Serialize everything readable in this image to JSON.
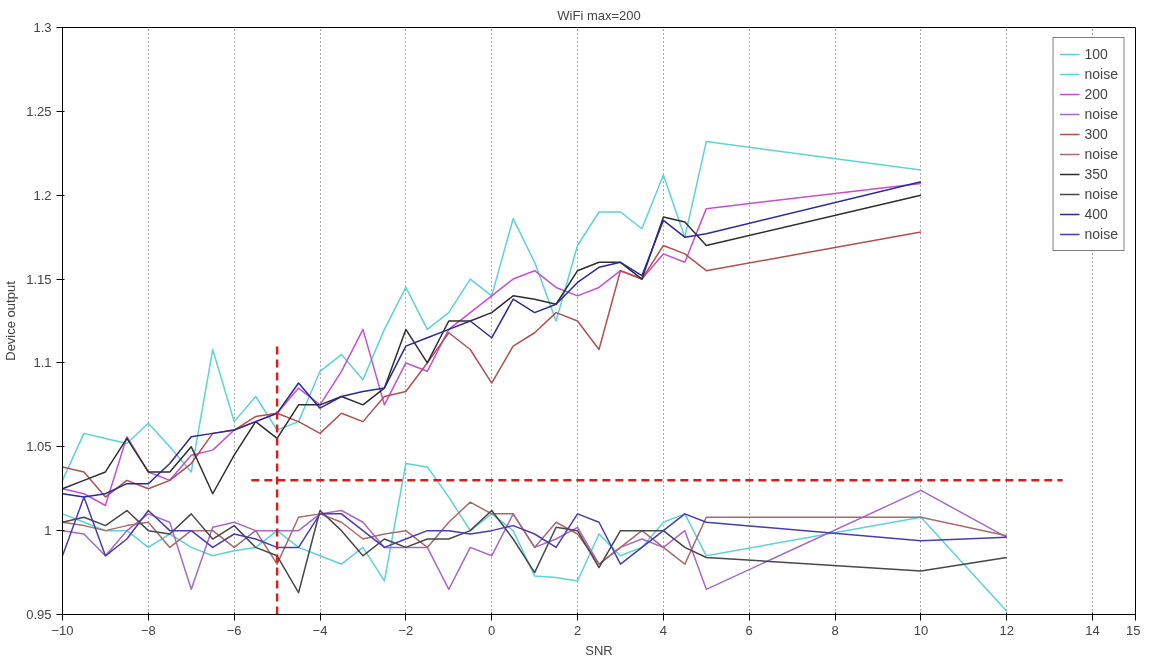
{
  "chart_data": {
    "type": "line",
    "title": "WiFi max=200",
    "xlabel": "SNR",
    "ylabel": "Device output",
    "x": [
      -10,
      -9.5,
      -9,
      -8.5,
      -8,
      -7.5,
      -7,
      -6.5,
      -6,
      -5.5,
      -5,
      -4.5,
      -4,
      -3.5,
      -3,
      -2.5,
      -2,
      -1.5,
      -1,
      -0.5,
      0,
      0.5,
      1,
      1.5,
      2,
      2.5,
      3,
      3.5,
      4,
      4.5,
      5,
      10,
      12
    ],
    "xlim": [
      -10,
      15
    ],
    "xticks": [
      -10,
      -8,
      -6,
      -4,
      -2,
      0,
      2,
      4,
      6,
      8,
      10,
      12,
      14,
      15
    ],
    "ylim": [
      0.95,
      1.3
    ],
    "yticks": [
      0.95,
      1,
      1.05,
      1.1,
      1.15,
      1.2,
      1.25,
      1.3
    ],
    "grid": "x",
    "legend": "top right",
    "line_style": "solid",
    "marker": "none",
    "series": [
      {
        "name": "100",
        "color": "#5cd3d6",
        "values": [
          1.03,
          1.058,
          1.055,
          1.052,
          1.064,
          1.05,
          1.035,
          1.108,
          1.065,
          1.08,
          1.06,
          1.065,
          1.095,
          1.105,
          1.09,
          1.12,
          1.145,
          1.12,
          1.13,
          1.15,
          1.14,
          1.186,
          1.16,
          1.125,
          1.17,
          1.19,
          1.19,
          1.18,
          1.212,
          1.175,
          1.232,
          1.215,
          null
        ]
      },
      {
        "name": "noise",
        "color": "#5cd3d6",
        "values": [
          1.01,
          1.005,
          1.0,
          1.0,
          0.99,
          0.998,
          0.99,
          0.985,
          0.988,
          0.99,
          1.0,
          0.99,
          0.985,
          0.98,
          0.99,
          0.97,
          1.04,
          1.038,
          1.02,
          1.0,
          1.01,
          1.0,
          0.973,
          0.972,
          0.97,
          0.998,
          0.985,
          0.99,
          1.005,
          1.01,
          0.985,
          1.008,
          0.952
        ]
      },
      {
        "name": "200",
        "color": "#c64fd2",
        "values": [
          1.025,
          1.022,
          1.015,
          1.056,
          1.035,
          1.03,
          1.045,
          1.048,
          1.06,
          1.065,
          1.07,
          1.085,
          1.075,
          1.095,
          1.12,
          1.075,
          1.1,
          1.095,
          1.12,
          1.13,
          1.14,
          1.15,
          1.155,
          1.145,
          1.14,
          1.145,
          1.155,
          1.15,
          1.165,
          1.16,
          1.192,
          1.207,
          null
        ]
      },
      {
        "name": "noise",
        "color": "#a868c8",
        "values": [
          1.0,
          0.998,
          0.985,
          1.0,
          1.01,
          1.005,
          0.965,
          1.002,
          1.005,
          1.0,
          1.0,
          1.0,
          1.01,
          1.012,
          1.005,
          0.99,
          0.99,
          0.99,
          0.965,
          0.99,
          0.985,
          1.01,
          0.99,
          0.995,
          1.002,
          0.98,
          0.99,
          0.995,
          0.99,
          1.0,
          0.965,
          1.024,
          0.996
        ]
      },
      {
        "name": "300",
        "color": "#b25050",
        "values": [
          1.038,
          1.035,
          1.02,
          1.03,
          1.025,
          1.03,
          1.04,
          1.058,
          1.06,
          1.068,
          1.07,
          1.065,
          1.058,
          1.07,
          1.065,
          1.08,
          1.083,
          1.1,
          1.118,
          1.108,
          1.088,
          1.11,
          1.118,
          1.13,
          1.125,
          1.108,
          1.155,
          1.15,
          1.17,
          1.165,
          1.155,
          1.178,
          null
        ]
      },
      {
        "name": "noise",
        "color": "#a86a6a",
        "values": [
          1.005,
          1.003,
          1.0,
          1.003,
          1.005,
          0.99,
          1.0,
          1.0,
          0.99,
          1.0,
          0.98,
          1.008,
          1.01,
          1.005,
          0.995,
          0.998,
          1.0,
          0.99,
          1.005,
          1.017,
          1.01,
          1.01,
          0.99,
          1.005,
          0.998,
          0.98,
          0.99,
          1.0,
          0.99,
          0.98,
          1.008,
          1.008,
          0.997
        ]
      },
      {
        "name": "350",
        "color": "#2e2e2e",
        "values": [
          1.025,
          1.03,
          1.035,
          1.055,
          1.035,
          1.035,
          1.05,
          1.022,
          1.045,
          1.065,
          1.055,
          1.075,
          1.075,
          1.08,
          1.075,
          1.085,
          1.12,
          1.1,
          1.125,
          1.125,
          1.13,
          1.14,
          1.138,
          1.135,
          1.155,
          1.16,
          1.16,
          1.15,
          1.187,
          1.184,
          1.17,
          1.2,
          null
        ]
      },
      {
        "name": "noise",
        "color": "#484848",
        "values": [
          1.005,
          1.008,
          1.003,
          1.012,
          1.0,
          0.998,
          1.01,
          0.995,
          1.003,
          0.99,
          0.985,
          0.963,
          1.012,
          1.0,
          0.985,
          0.995,
          0.99,
          0.995,
          0.995,
          1.0,
          1.012,
          0.995,
          0.975,
          1.002,
          1.0,
          0.978,
          1.0,
          1.0,
          1.0,
          0.99,
          0.984,
          0.976,
          0.984
        ]
      },
      {
        "name": "400",
        "color": "#2a2a9a",
        "values": [
          1.022,
          1.02,
          1.022,
          1.028,
          1.028,
          1.04,
          1.056,
          1.058,
          1.06,
          1.065,
          1.07,
          1.088,
          1.073,
          1.08,
          1.083,
          1.085,
          1.11,
          1.115,
          1.12,
          1.125,
          1.115,
          1.138,
          1.13,
          1.135,
          1.148,
          1.157,
          1.16,
          1.152,
          1.185,
          1.175,
          1.177,
          1.208,
          null
        ]
      },
      {
        "name": "noise",
        "color": "#4a3cb0",
        "values": [
          0.985,
          1.02,
          0.985,
          0.995,
          1.012,
          1.0,
          1.0,
          0.99,
          0.998,
          0.995,
          0.99,
          0.99,
          1.01,
          1.01,
          1.0,
          0.99,
          0.995,
          1.0,
          1.0,
          0.998,
          1.0,
          1.003,
          0.998,
          0.99,
          1.01,
          1.005,
          0.98,
          0.99,
          1.0,
          1.01,
          1.005,
          0.994,
          0.996
        ]
      },
      {
        "color": "#cc2222",
        "line_style": "dashed",
        "x": [
          -5,
          -5
        ],
        "values": [
          0.95,
          1.11
        ]
      },
      {
        "color": "#cc2222",
        "line_style": "dashed",
        "x": [
          -5.6,
          13.3
        ],
        "values": [
          1.03,
          1.03
        ]
      }
    ]
  }
}
